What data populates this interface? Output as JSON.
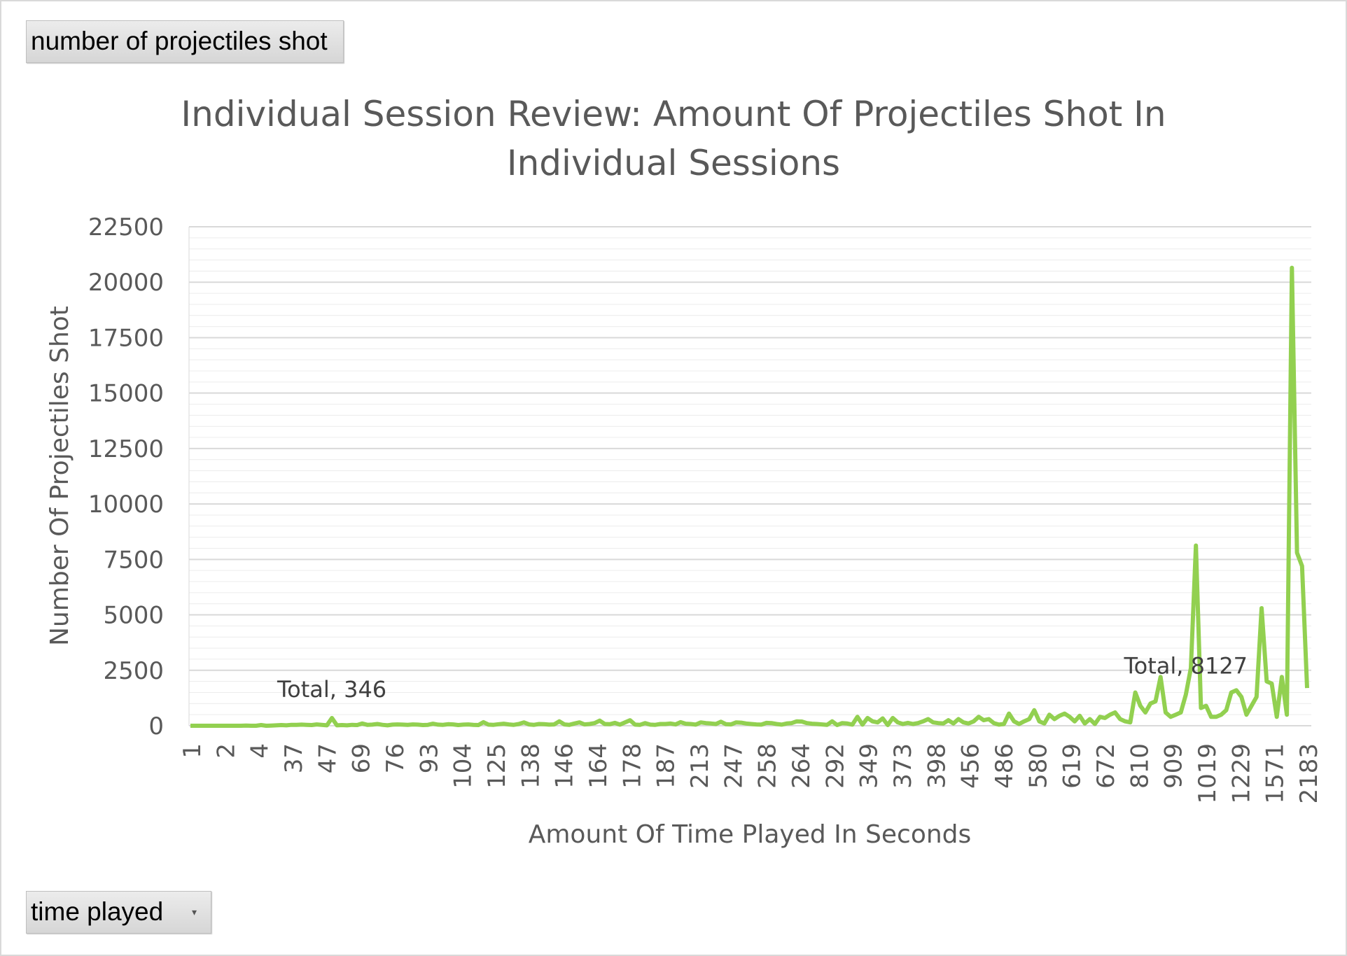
{
  "field_buttons": {
    "values_field": "number of projectiles shot",
    "axis_field": "time played",
    "axis_field_icon": "dropdown-arrow-icon"
  },
  "colors": {
    "series": "#92d050",
    "gridline": "#d9d9d9",
    "text": "#595959"
  },
  "chart_data": {
    "type": "line",
    "title": "Individual Session Review: Amount Of Projectiles Shot In Individual Sessions",
    "title_lines": [
      "Individual Session Review: Amount Of Projectiles Shot In",
      "Individual Sessions"
    ],
    "xlabel": "Amount Of Time Played In Seconds",
    "ylabel": "Number Of Projectiles Shot",
    "ylim": [
      0,
      22500
    ],
    "yticks": [
      0,
      2500,
      5000,
      7500,
      10000,
      12500,
      15000,
      17500,
      20000,
      22500
    ],
    "grid": true,
    "legend": "none",
    "xtick_labels": [
      "1",
      "2",
      "4",
      "37",
      "47",
      "69",
      "76",
      "93",
      "104",
      "125",
      "138",
      "146",
      "164",
      "178",
      "187",
      "213",
      "247",
      "258",
      "264",
      "292",
      "349",
      "373",
      "398",
      "456",
      "486",
      "580",
      "619",
      "672",
      "810",
      "909",
      "1019",
      "1229",
      "1571",
      "2183"
    ],
    "series": [
      {
        "name": "Total",
        "values": [
          0,
          0,
          0,
          0,
          0,
          0,
          0,
          0,
          0,
          0,
          0,
          10,
          0,
          0,
          30,
          0,
          10,
          20,
          30,
          20,
          40,
          40,
          50,
          40,
          30,
          60,
          40,
          20,
          346,
          20,
          30,
          20,
          40,
          30,
          100,
          40,
          50,
          80,
          40,
          20,
          50,
          60,
          50,
          40,
          60,
          50,
          30,
          40,
          90,
          50,
          40,
          70,
          60,
          30,
          50,
          60,
          40,
          30,
          160,
          50,
          40,
          70,
          90,
          60,
          40,
          80,
          150,
          60,
          40,
          80,
          70,
          50,
          60,
          200,
          60,
          40,
          100,
          150,
          60,
          80,
          120,
          230,
          80,
          70,
          130,
          50,
          150,
          250,
          50,
          40,
          120,
          50,
          40,
          80,
          80,
          100,
          60,
          160,
          90,
          80,
          50,
          150,
          120,
          100,
          80,
          180,
          70,
          60,
          150,
          140,
          100,
          80,
          60,
          50,
          130,
          120,
          80,
          50,
          100,
          120,
          200,
          190,
          120,
          90,
          80,
          60,
          40,
          200,
          30,
          120,
          100,
          50,
          400,
          50,
          350,
          200,
          150,
          330,
          30,
          350,
          150,
          80,
          130,
          80,
          120,
          200,
          300,
          150,
          120,
          100,
          250,
          100,
          300,
          150,
          100,
          200,
          400,
          250,
          300,
          120,
          50,
          80,
          550,
          200,
          80,
          200,
          300,
          700,
          200,
          100,
          500,
          300,
          450,
          550,
          400,
          200,
          450,
          100,
          300,
          80,
          400,
          350,
          500,
          600,
          300,
          200,
          150,
          1500,
          900,
          600,
          1000,
          1100,
          2200,
          600,
          400,
          500,
          600,
          1400,
          2600,
          8127,
          800,
          900,
          400,
          400,
          500,
          700,
          1500,
          1600,
          1300,
          500,
          900,
          1300,
          5300,
          2000,
          1900,
          400,
          2200,
          500,
          20650,
          7800,
          7200,
          1700
        ]
      }
    ],
    "data_labels": [
      {
        "series": "Total",
        "index": 28,
        "text": "Total, 346"
      },
      {
        "series": "Total",
        "index": 197,
        "text": "Total, 8127"
      }
    ]
  }
}
